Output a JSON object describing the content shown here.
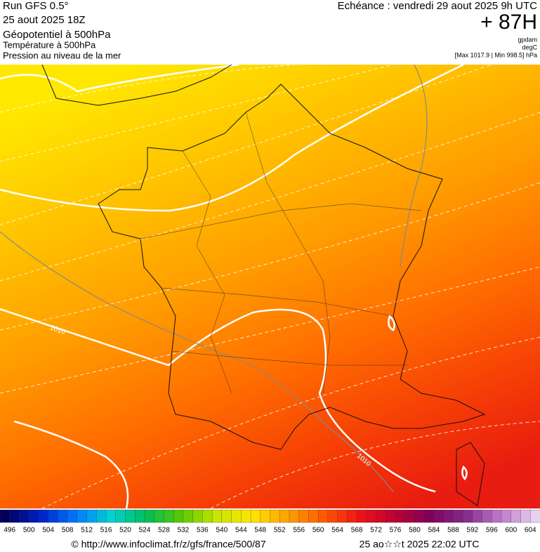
{
  "header": {
    "run": "Run GFS 0.5°",
    "date": "25 aout 2025 18Z",
    "fields": [
      "Géopotentiel à 500hPa",
      "Température à 500hPa",
      "Pression au niveau de la mer"
    ],
    "forecast": "Echéance : vendredi 29 aout 2025 9h UTC",
    "lead": "+ 87H",
    "units": [
      "gpdam",
      "degC",
      "[Max 1017.9 | Min 998.5] hPa"
    ]
  },
  "map": {
    "isobar_labels": [
      "1010",
      "1010"
    ]
  },
  "colorbar": {
    "ticks": [
      496,
      500,
      504,
      508,
      512,
      516,
      520,
      524,
      528,
      532,
      536,
      540,
      544,
      548,
      552,
      556,
      560,
      564,
      568,
      572,
      576,
      580,
      584,
      588,
      592,
      596,
      600,
      604
    ]
  },
  "footer": {
    "url": "© http://www.infoclimat.fr/z/gfs/france/500/87",
    "timestamp": "25 ao☆☆t 2025 22:02 UTC"
  }
}
